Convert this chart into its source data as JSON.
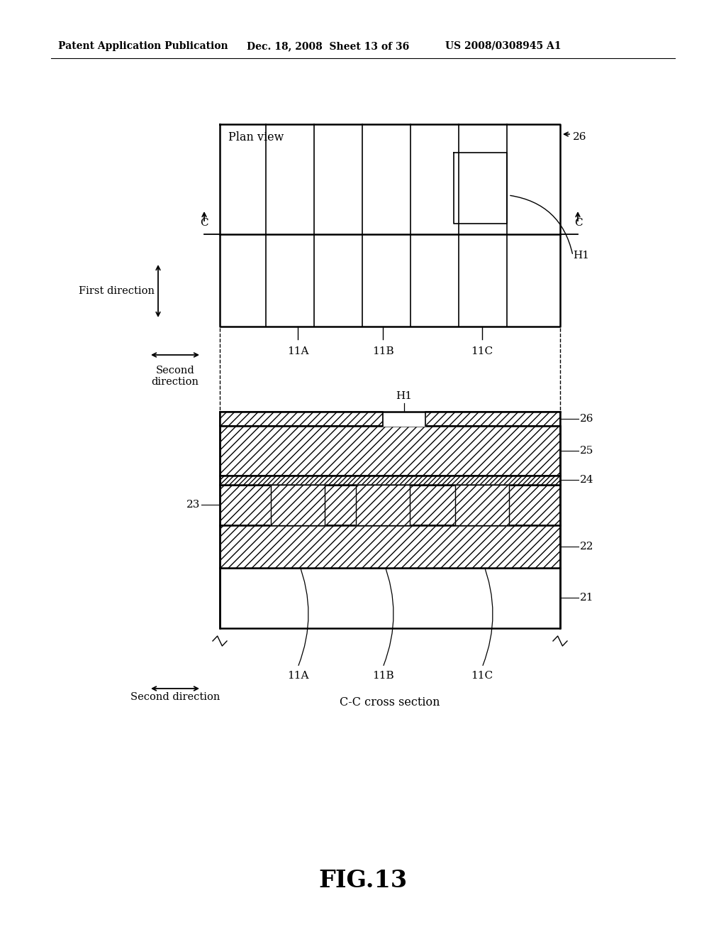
{
  "bg_color": "#ffffff",
  "header_left": "Patent Application Publication",
  "header_mid": "Dec. 18, 2008  Sheet 13 of 36",
  "header_right": "US 2008/0308945 A1",
  "figure_label": "FIG.13",
  "plan_view_label": "Plan view",
  "cross_section_label": "C-C cross section",
  "first_direction_label": "First direction",
  "second_direction_label_left": "Second\ndirection",
  "second_direction_label_bottom": "Second direction",
  "label_11A": "11A",
  "label_11B": "11B",
  "label_11C": "11C",
  "label_H1": "H1",
  "label_26": "26",
  "label_25": "25",
  "label_24": "24",
  "label_23": "23",
  "label_22": "22",
  "label_21": "21",
  "label_C": "C"
}
